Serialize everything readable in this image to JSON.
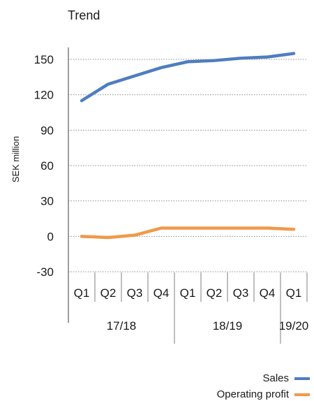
{
  "chart_data": {
    "type": "line",
    "title": "Trend",
    "ylabel": "SEK million",
    "xlabel": "",
    "ylim": [
      -30,
      150
    ],
    "yticks": [
      -30,
      0,
      30,
      60,
      90,
      120,
      150
    ],
    "grid": true,
    "categories": [
      "Q1",
      "Q2",
      "Q3",
      "Q4",
      "Q1",
      "Q2",
      "Q3",
      "Q4",
      "Q1"
    ],
    "groups": [
      {
        "label": "17/18",
        "span": 4
      },
      {
        "label": "18/19",
        "span": 4
      },
      {
        "label": "19/20",
        "span": 1
      }
    ],
    "legend_position": "bottom-right",
    "series": [
      {
        "name": "Sales",
        "color": "#4e7ec0",
        "values": [
          115,
          129,
          136,
          143,
          148,
          149,
          151,
          152,
          155
        ]
      },
      {
        "name": "Operating profit",
        "color": "#f0994a",
        "values": [
          0,
          -1,
          1,
          7,
          7,
          7,
          7,
          7,
          6
        ]
      }
    ]
  }
}
